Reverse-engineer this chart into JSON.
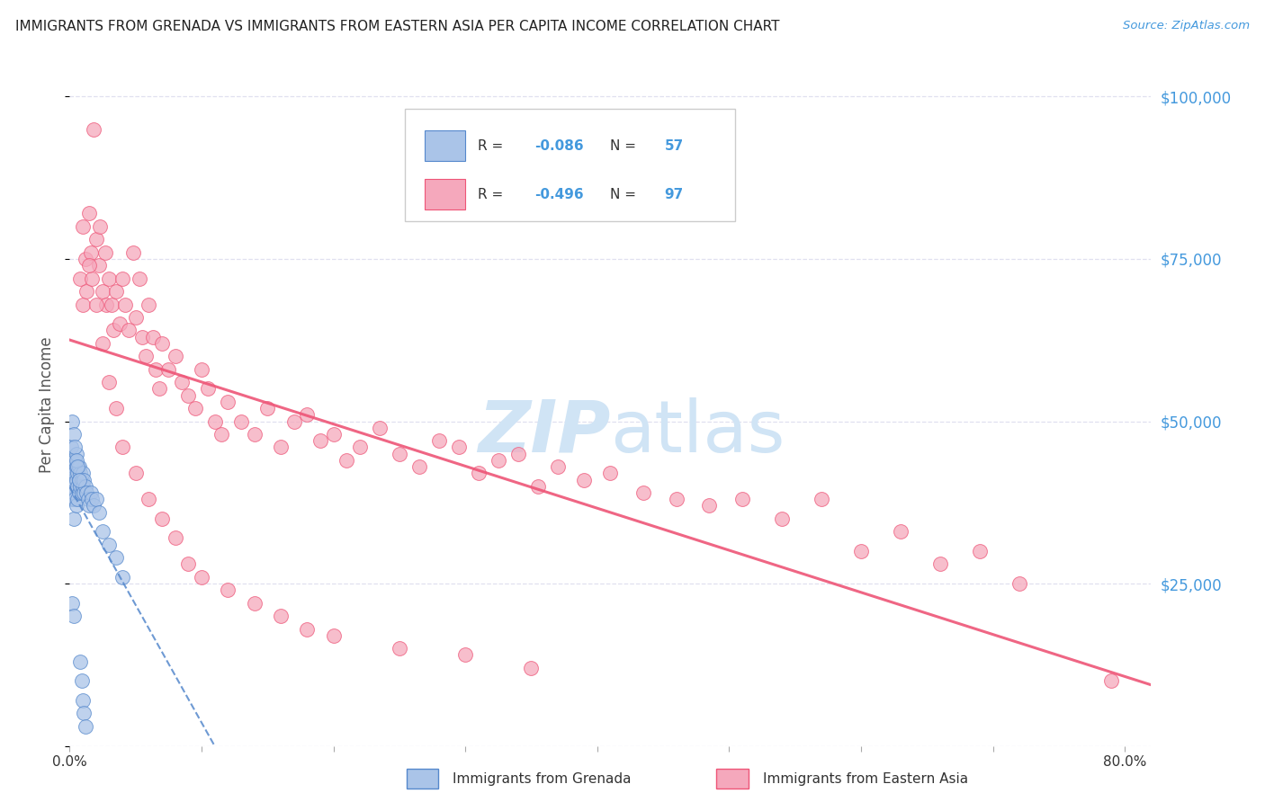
{
  "title": "IMMIGRANTS FROM GRENADA VS IMMIGRANTS FROM EASTERN ASIA PER CAPITA INCOME CORRELATION CHART",
  "source": "Source: ZipAtlas.com",
  "ylabel": "Per Capita Income",
  "R_grenada": -0.086,
  "N_grenada": 57,
  "R_eastern_asia": -0.496,
  "N_eastern_asia": 97,
  "color_grenada": "#aac4e8",
  "color_eastern_asia": "#f5a8bc",
  "line_color_grenada": "#5588cc",
  "line_color_eastern_asia": "#ee5577",
  "background_color": "#ffffff",
  "grid_color": "#ddddee",
  "title_color": "#222222",
  "axis_label_color": "#555555",
  "right_tick_color": "#4499dd",
  "watermark_color": "#d0e4f5",
  "legend_grenada": "Immigrants from Grenada",
  "legend_eastern_asia": "Immigrants from Eastern Asia",
  "scatter_grenada_x": [
    0.001,
    0.001,
    0.001,
    0.002,
    0.002,
    0.002,
    0.002,
    0.003,
    0.003,
    0.003,
    0.003,
    0.004,
    0.004,
    0.004,
    0.005,
    0.005,
    0.005,
    0.005,
    0.006,
    0.006,
    0.006,
    0.007,
    0.007,
    0.007,
    0.008,
    0.008,
    0.009,
    0.009,
    0.01,
    0.01,
    0.011,
    0.011,
    0.012,
    0.013,
    0.014,
    0.015,
    0.016,
    0.017,
    0.018,
    0.02,
    0.022,
    0.025,
    0.03,
    0.035,
    0.04,
    0.003,
    0.004,
    0.005,
    0.006,
    0.007,
    0.002,
    0.003,
    0.008,
    0.009,
    0.01,
    0.011,
    0.012
  ],
  "scatter_grenada_y": [
    43000,
    40000,
    46000,
    42000,
    44000,
    38000,
    50000,
    43000,
    41000,
    39000,
    35000,
    44000,
    42000,
    38000,
    43000,
    41000,
    37000,
    45000,
    42000,
    40000,
    38000,
    43000,
    41000,
    39000,
    42000,
    40000,
    41000,
    39000,
    42000,
    40000,
    41000,
    39000,
    40000,
    39000,
    38000,
    37000,
    39000,
    38000,
    37000,
    38000,
    36000,
    33000,
    31000,
    29000,
    26000,
    48000,
    46000,
    44000,
    43000,
    41000,
    22000,
    20000,
    13000,
    10000,
    7000,
    5000,
    3000
  ],
  "scatter_eastern_asia_x": [
    0.008,
    0.01,
    0.012,
    0.013,
    0.015,
    0.016,
    0.017,
    0.018,
    0.02,
    0.022,
    0.023,
    0.025,
    0.027,
    0.028,
    0.03,
    0.032,
    0.033,
    0.035,
    0.038,
    0.04,
    0.042,
    0.045,
    0.048,
    0.05,
    0.053,
    0.055,
    0.058,
    0.06,
    0.063,
    0.065,
    0.068,
    0.07,
    0.075,
    0.08,
    0.085,
    0.09,
    0.095,
    0.1,
    0.105,
    0.11,
    0.115,
    0.12,
    0.13,
    0.14,
    0.15,
    0.16,
    0.17,
    0.18,
    0.19,
    0.2,
    0.21,
    0.22,
    0.235,
    0.25,
    0.265,
    0.28,
    0.295,
    0.31,
    0.325,
    0.34,
    0.355,
    0.37,
    0.39,
    0.41,
    0.435,
    0.46,
    0.485,
    0.51,
    0.54,
    0.57,
    0.6,
    0.63,
    0.66,
    0.69,
    0.72,
    0.01,
    0.015,
    0.02,
    0.025,
    0.03,
    0.035,
    0.04,
    0.05,
    0.06,
    0.07,
    0.08,
    0.09,
    0.1,
    0.12,
    0.14,
    0.16,
    0.18,
    0.2,
    0.25,
    0.3,
    0.35,
    0.79
  ],
  "scatter_eastern_asia_y": [
    72000,
    68000,
    75000,
    70000,
    82000,
    76000,
    72000,
    95000,
    78000,
    74000,
    80000,
    70000,
    76000,
    68000,
    72000,
    68000,
    64000,
    70000,
    65000,
    72000,
    68000,
    64000,
    76000,
    66000,
    72000,
    63000,
    60000,
    68000,
    63000,
    58000,
    55000,
    62000,
    58000,
    60000,
    56000,
    54000,
    52000,
    58000,
    55000,
    50000,
    48000,
    53000,
    50000,
    48000,
    52000,
    46000,
    50000,
    51000,
    47000,
    48000,
    44000,
    46000,
    49000,
    45000,
    43000,
    47000,
    46000,
    42000,
    44000,
    45000,
    40000,
    43000,
    41000,
    42000,
    39000,
    38000,
    37000,
    38000,
    35000,
    38000,
    30000,
    33000,
    28000,
    30000,
    25000,
    80000,
    74000,
    68000,
    62000,
    56000,
    52000,
    46000,
    42000,
    38000,
    35000,
    32000,
    28000,
    26000,
    24000,
    22000,
    20000,
    18000,
    17000,
    15000,
    14000,
    12000,
    10000
  ],
  "xlim": [
    0.0,
    0.82
  ],
  "ylim": [
    0,
    105000
  ],
  "yticks": [
    0,
    25000,
    50000,
    75000,
    100000
  ],
  "ytick_labels": [
    "",
    "$25,000",
    "$50,000",
    "$75,000",
    "$100,000"
  ]
}
